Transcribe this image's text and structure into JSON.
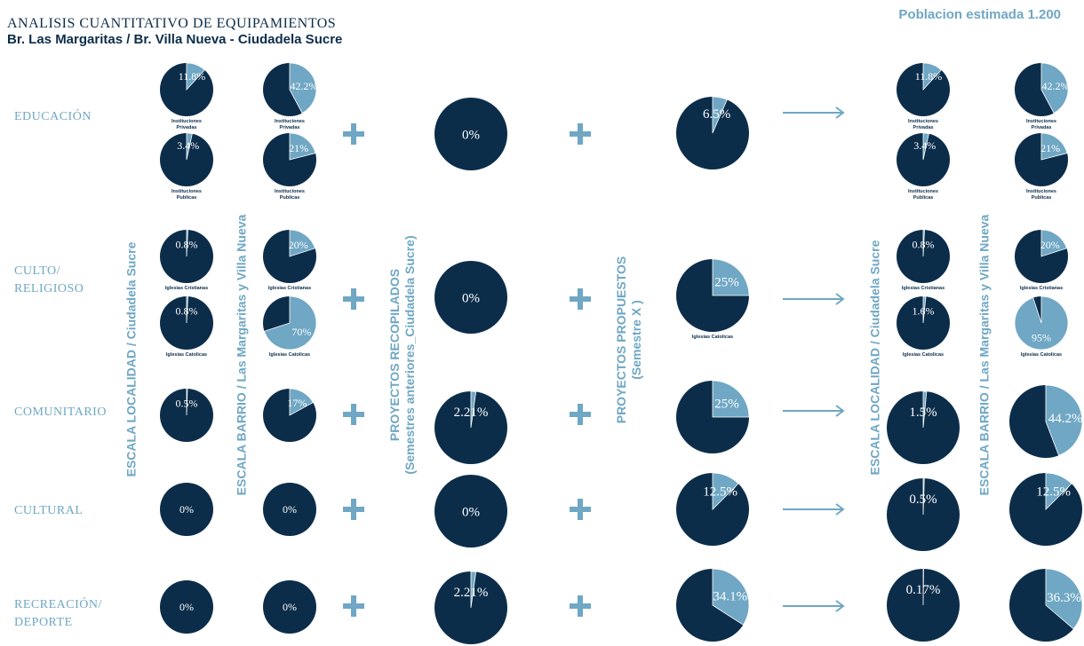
{
  "header": {
    "title": "ANALISIS CUANTITATIVO DE EQUIPAMIENTOS",
    "subtitle": "Br. Las Margaritas / Br. Villa Nueva - Ciudadela Sucre",
    "population": "Poblacion estimada 1.200"
  },
  "rows": [
    {
      "label": "EDUCACIÓN"
    },
    {
      "label": "CULTO/\nRELIGIOSO"
    },
    {
      "label": "COMUNITARIO"
    },
    {
      "label": "CULTURAL"
    },
    {
      "label": "RECREACIÓN/\nDEPORTE"
    }
  ],
  "vertical_labels": {
    "localidad": "ESCALA LOCALIDAD / Ciudadela Sucre",
    "barrio": "ESCALA BARRIO / Las Margaritas y Villa Nueva",
    "recopilados_1": "PROYECTOS RECOPILADOS",
    "recopilados_2": "(Semestres anteriores_Ciudadela Sucre)",
    "propuestos_1": "PROYECTOS PROPUESTOS",
    "propuestos_2": "(Semestre X )"
  },
  "colors": {
    "dark": "#0c2d4a",
    "light": "#6fa7c4",
    "white": "#ffffff"
  },
  "chart_data": {
    "type": "pie",
    "pies": [
      {
        "row": "EDUCACIÓN",
        "column": "localidad",
        "value": 11.8,
        "label": "11.8%",
        "caption": "Instituciones\nPrivadas"
      },
      {
        "row": "EDUCACIÓN",
        "column": "localidad",
        "value": 3.4,
        "label": "3.4%",
        "caption": "Instituciones\nPublicas"
      },
      {
        "row": "EDUCACIÓN",
        "column": "barrio",
        "value": 42.2,
        "label": "42.2%",
        "caption": "Instituciones\nPrivadas"
      },
      {
        "row": "EDUCACIÓN",
        "column": "barrio",
        "value": 21,
        "label": "21%",
        "caption": "Instituciones\nPublicas"
      },
      {
        "row": "EDUCACIÓN",
        "column": "recopilados",
        "value": 0,
        "label": "0%",
        "caption": ""
      },
      {
        "row": "EDUCACIÓN",
        "column": "propuestos",
        "value": 6.5,
        "label": "6.5%",
        "caption": ""
      },
      {
        "row": "EDUCACIÓN",
        "column": "result_localidad",
        "value": 11.8,
        "label": "11.8%",
        "caption": "Instituciones\nPrivadas"
      },
      {
        "row": "EDUCACIÓN",
        "column": "result_localidad",
        "value": 3.4,
        "label": "3.4%",
        "caption": "Instituciones\nPublicas"
      },
      {
        "row": "EDUCACIÓN",
        "column": "result_barrio",
        "value": 42.2,
        "label": "42.2%",
        "caption": "Instituciones\nPrivadas"
      },
      {
        "row": "EDUCACIÓN",
        "column": "result_barrio",
        "value": 21,
        "label": "21%",
        "caption": "Instituciones\nPublicas"
      },
      {
        "row": "CULTO/RELIGIOSO",
        "column": "localidad",
        "value": 0.8,
        "label": "0.8%",
        "caption": "Iglesias Cristianas"
      },
      {
        "row": "CULTO/RELIGIOSO",
        "column": "localidad",
        "value": 0.8,
        "label": "0.8%",
        "caption": "Iglesias Catolicas"
      },
      {
        "row": "CULTO/RELIGIOSO",
        "column": "barrio",
        "value": 20,
        "label": "20%",
        "caption": "Iglesias Cristianas"
      },
      {
        "row": "CULTO/RELIGIOSO",
        "column": "barrio",
        "value": 70,
        "label": "70%",
        "caption": "Iglesias Catolicas"
      },
      {
        "row": "CULTO/RELIGIOSO",
        "column": "recopilados",
        "value": 0,
        "label": "0%",
        "caption": ""
      },
      {
        "row": "CULTO/RELIGIOSO",
        "column": "propuestos",
        "value": 25,
        "label": "25%",
        "caption": "Iglesias Catolicas"
      },
      {
        "row": "CULTO/RELIGIOSO",
        "column": "result_localidad",
        "value": 0.8,
        "label": "0.8%",
        "caption": "Iglesias Cristianas"
      },
      {
        "row": "CULTO/RELIGIOSO",
        "column": "result_localidad",
        "value": 1.6,
        "label": "1.6%",
        "caption": "Iglesias Catolicas"
      },
      {
        "row": "CULTO/RELIGIOSO",
        "column": "result_barrio",
        "value": 20,
        "label": "20%",
        "caption": "Iglesias Cristianas"
      },
      {
        "row": "CULTO/RELIGIOSO",
        "column": "result_barrio",
        "value": 95,
        "label": "95%",
        "caption": "Iglesias Catolicas"
      },
      {
        "row": "COMUNITARIO",
        "column": "localidad",
        "value": 0.5,
        "label": "0.5%",
        "caption": ""
      },
      {
        "row": "COMUNITARIO",
        "column": "barrio",
        "value": 17,
        "label": "17%",
        "caption": ""
      },
      {
        "row": "COMUNITARIO",
        "column": "recopilados",
        "value": 2.21,
        "label": "2.21%",
        "caption": ""
      },
      {
        "row": "COMUNITARIO",
        "column": "propuestos",
        "value": 25,
        "label": "25%",
        "caption": ""
      },
      {
        "row": "COMUNITARIO",
        "column": "result_localidad",
        "value": 1.5,
        "label": "1.5%",
        "caption": ""
      },
      {
        "row": "COMUNITARIO",
        "column": "result_barrio",
        "value": 44.2,
        "label": "44.2%",
        "caption": ""
      },
      {
        "row": "CULTURAL",
        "column": "localidad",
        "value": 0,
        "label": "0%",
        "caption": ""
      },
      {
        "row": "CULTURAL",
        "column": "barrio",
        "value": 0,
        "label": "0%",
        "caption": ""
      },
      {
        "row": "CULTURAL",
        "column": "recopilados",
        "value": 0,
        "label": "0%",
        "caption": ""
      },
      {
        "row": "CULTURAL",
        "column": "propuestos",
        "value": 12.5,
        "label": "12.5%",
        "caption": ""
      },
      {
        "row": "CULTURAL",
        "column": "result_localidad",
        "value": 0.5,
        "label": "0.5%",
        "caption": ""
      },
      {
        "row": "CULTURAL",
        "column": "result_barrio",
        "value": 12.5,
        "label": "12.5%",
        "caption": ""
      },
      {
        "row": "RECREACIÓN/DEPORTE",
        "column": "localidad",
        "value": 0,
        "label": "0%",
        "caption": ""
      },
      {
        "row": "RECREACIÓN/DEPORTE",
        "column": "barrio",
        "value": 0,
        "label": "0%",
        "caption": ""
      },
      {
        "row": "RECREACIÓN/DEPORTE",
        "column": "recopilados",
        "value": 2.21,
        "label": "2.21%",
        "caption": ""
      },
      {
        "row": "RECREACIÓN/DEPORTE",
        "column": "propuestos",
        "value": 34.1,
        "label": "34.1%",
        "caption": ""
      },
      {
        "row": "RECREACIÓN/DEPORTE",
        "column": "result_localidad",
        "value": 0.17,
        "label": "0.17%",
        "caption": ""
      },
      {
        "row": "RECREACIÓN/DEPORTE",
        "column": "result_barrio",
        "value": 36.3,
        "label": "36.3%",
        "caption": ""
      }
    ]
  }
}
